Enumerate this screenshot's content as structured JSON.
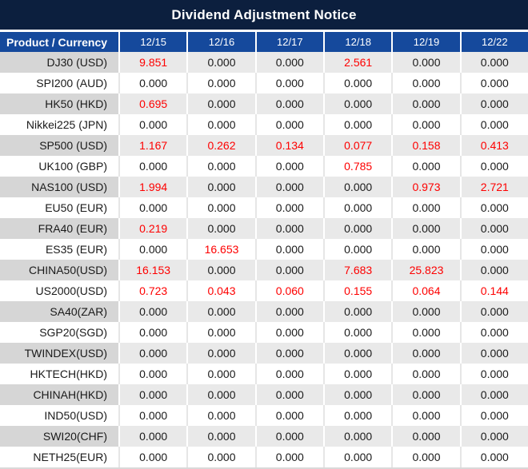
{
  "title": "Dividend Adjustment Notice",
  "colors": {
    "title_bar_bg": "#0C1F3E",
    "header_bg": "#15499C",
    "label_shaded_bg": "#D6D6D6",
    "value_shaded_bg": "#E9E9E9",
    "highlight_red": "#FE0000",
    "data_text": "#1A1A1A"
  },
  "table": {
    "product_column_header": "Product / Currency",
    "date_columns": [
      "12/15",
      "12/16",
      "12/17",
      "12/18",
      "12/19",
      "12/22"
    ],
    "rows": [
      {
        "product": "DJ30 (USD)",
        "values": [
          "9.851",
          "0.000",
          "0.000",
          "2.561",
          "0.000",
          "0.000"
        ]
      },
      {
        "product": "SPI200 (AUD)",
        "values": [
          "0.000",
          "0.000",
          "0.000",
          "0.000",
          "0.000",
          "0.000"
        ]
      },
      {
        "product": "HK50 (HKD)",
        "values": [
          "0.695",
          "0.000",
          "0.000",
          "0.000",
          "0.000",
          "0.000"
        ]
      },
      {
        "product": "Nikkei225 (JPN)",
        "values": [
          "0.000",
          "0.000",
          "0.000",
          "0.000",
          "0.000",
          "0.000"
        ]
      },
      {
        "product": "SP500 (USD)",
        "values": [
          "1.167",
          "0.262",
          "0.134",
          "0.077",
          "0.158",
          "0.413"
        ]
      },
      {
        "product": "UK100 (GBP)",
        "values": [
          "0.000",
          "0.000",
          "0.000",
          "0.785",
          "0.000",
          "0.000"
        ]
      },
      {
        "product": "NAS100 (USD)",
        "values": [
          "1.994",
          "0.000",
          "0.000",
          "0.000",
          "0.973",
          "2.721"
        ]
      },
      {
        "product": "EU50 (EUR)",
        "values": [
          "0.000",
          "0.000",
          "0.000",
          "0.000",
          "0.000",
          "0.000"
        ]
      },
      {
        "product": "FRA40 (EUR)",
        "values": [
          "0.219",
          "0.000",
          "0.000",
          "0.000",
          "0.000",
          "0.000"
        ]
      },
      {
        "product": "ES35 (EUR)",
        "values": [
          "0.000",
          "16.653",
          "0.000",
          "0.000",
          "0.000",
          "0.000"
        ]
      },
      {
        "product": "CHINA50(USD)",
        "values": [
          "16.153",
          "0.000",
          "0.000",
          "7.683",
          "25.823",
          "0.000"
        ]
      },
      {
        "product": "US2000(USD)",
        "values": [
          "0.723",
          "0.043",
          "0.060",
          "0.155",
          "0.064",
          "0.144"
        ]
      },
      {
        "product": "SA40(ZAR)",
        "values": [
          "0.000",
          "0.000",
          "0.000",
          "0.000",
          "0.000",
          "0.000"
        ]
      },
      {
        "product": "SGP20(SGD)",
        "values": [
          "0.000",
          "0.000",
          "0.000",
          "0.000",
          "0.000",
          "0.000"
        ]
      },
      {
        "product": "TWINDEX(USD)",
        "values": [
          "0.000",
          "0.000",
          "0.000",
          "0.000",
          "0.000",
          "0.000"
        ]
      },
      {
        "product": "HKTECH(HKD)",
        "values": [
          "0.000",
          "0.000",
          "0.000",
          "0.000",
          "0.000",
          "0.000"
        ]
      },
      {
        "product": "CHINAH(HKD)",
        "values": [
          "0.000",
          "0.000",
          "0.000",
          "0.000",
          "0.000",
          "0.000"
        ]
      },
      {
        "product": "IND50(USD)",
        "values": [
          "0.000",
          "0.000",
          "0.000",
          "0.000",
          "0.000",
          "0.000"
        ]
      },
      {
        "product": "SWI20(CHF)",
        "values": [
          "0.000",
          "0.000",
          "0.000",
          "0.000",
          "0.000",
          "0.000"
        ]
      },
      {
        "product": "NETH25(EUR)",
        "values": [
          "0.000",
          "0.000",
          "0.000",
          "0.000",
          "0.000",
          "0.000"
        ]
      }
    ]
  }
}
